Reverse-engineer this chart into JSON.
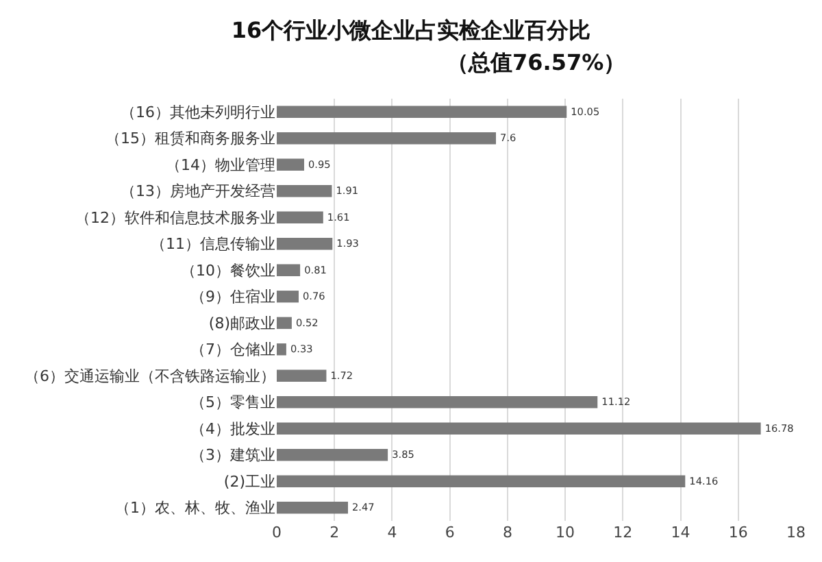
{
  "chart_data": {
    "type": "bar",
    "orientation": "horizontal",
    "title": "16个行业小微企业占实检企业百分比",
    "subtitle": "（总值76.57%）",
    "categories": [
      "（16）其他未列明行业",
      "（15）租赁和商务服务业",
      "（14）物业管理",
      "（13）房地产开发经营",
      "（12）软件和信息技术服务业",
      "（11）信息传输业",
      "（10）餐饮业",
      "（9）住宿业",
      "(8)邮政业",
      "（7）仓储业",
      "（6）交通运输业（不含铁路运输业）",
      "（5）零售业",
      "（4）批发业",
      "（3）建筑业",
      "(2)工业",
      "（1）农、林、牧、渔业"
    ],
    "values": [
      10.05,
      7.6,
      0.95,
      1.91,
      1.61,
      1.93,
      0.81,
      0.76,
      0.52,
      0.33,
      1.72,
      11.12,
      16.78,
      3.85,
      14.16,
      2.47
    ],
    "color": "#7a7a7a",
    "data_labels": true,
    "xlim": [
      0,
      18
    ],
    "xticks": [
      0,
      2,
      4,
      6,
      8,
      10,
      12,
      14,
      16,
      18
    ],
    "grid": "x"
  }
}
